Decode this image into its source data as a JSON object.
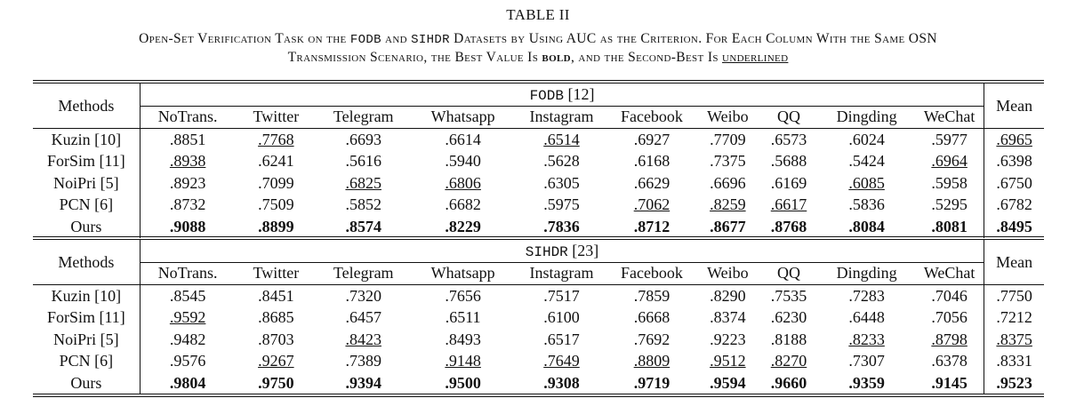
{
  "title": "TABLE II",
  "caption": {
    "line1_pre": "Open-Set Verification Task on the ",
    "ds1": "FODB",
    "and": " and ",
    "ds2": "SIHDR",
    "line1_post": " Datasets by Using AUC as the Criterion. For Each Column With the Same OSN",
    "line2_pre": "Transmission Scenario, the Best Value Is ",
    "bold_word": "bold",
    "line2_mid": ", and the Second-Best Is ",
    "underlined_word": "underlined"
  },
  "columns": [
    "NoTrans.",
    "Twitter",
    "Telegram",
    "Whatsapp",
    "Instagram",
    "Facebook",
    "Weibo",
    "QQ",
    "Dingding",
    "WeChat"
  ],
  "methods_label": "Methods",
  "mean_label": "Mean",
  "sections": [
    {
      "dataset": "FODB",
      "ref": " [12]",
      "rows": [
        {
          "method": "Kuzin [10]",
          "values": [
            ".8851",
            ".7768",
            ".6693",
            ".6614",
            ".6514",
            ".6927",
            ".7709",
            ".6573",
            ".6024",
            ".5977"
          ],
          "mean": ".6965",
          "underline": [
            1,
            4
          ],
          "mean_underline": true
        },
        {
          "method": "ForSim [11]",
          "values": [
            ".8938",
            ".6241",
            ".5616",
            ".5940",
            ".5628",
            ".6168",
            ".7375",
            ".5688",
            ".5424",
            ".6964"
          ],
          "mean": ".6398",
          "underline": [
            0,
            9
          ],
          "mean_underline": false
        },
        {
          "method": "NoiPri [5]",
          "values": [
            ".8923",
            ".7099",
            ".6825",
            ".6806",
            ".6305",
            ".6629",
            ".6696",
            ".6169",
            ".6085",
            ".5958"
          ],
          "mean": ".6750",
          "underline": [
            2,
            3,
            8
          ],
          "mean_underline": false
        },
        {
          "method": "PCN [6]",
          "values": [
            ".8732",
            ".7509",
            ".5852",
            ".6682",
            ".5975",
            ".7062",
            ".8259",
            ".6617",
            ".5836",
            ".5295"
          ],
          "mean": ".6782",
          "underline": [
            5,
            6,
            7
          ],
          "mean_underline": false
        },
        {
          "method": "Ours",
          "values": [
            ".9088",
            ".8899",
            ".8574",
            ".8229",
            ".7836",
            ".8712",
            ".8677",
            ".8768",
            ".8084",
            ".8081"
          ],
          "mean": ".8495",
          "bold": true
        }
      ]
    },
    {
      "dataset": "SIHDR",
      "ref": " [23]",
      "rows": [
        {
          "method": "Kuzin [10]",
          "values": [
            ".8545",
            ".8451",
            ".7320",
            ".7656",
            ".7517",
            ".7859",
            ".8290",
            ".7535",
            ".7283",
            ".7046"
          ],
          "mean": ".7750",
          "underline": [],
          "mean_underline": false
        },
        {
          "method": "ForSim [11]",
          "values": [
            ".9592",
            ".8685",
            ".6457",
            ".6511",
            ".6100",
            ".6668",
            ".8374",
            ".6230",
            ".6448",
            ".7056"
          ],
          "mean": ".7212",
          "underline": [
            0
          ],
          "mean_underline": false
        },
        {
          "method": "NoiPri [5]",
          "values": [
            ".9482",
            ".8703",
            ".8423",
            ".8493",
            ".6517",
            ".7692",
            ".9223",
            ".8188",
            ".8233",
            ".8798"
          ],
          "mean": ".8375",
          "underline": [
            2,
            8,
            9
          ],
          "mean_underline": true
        },
        {
          "method": "PCN [6]",
          "values": [
            ".9576",
            ".9267",
            ".7389",
            ".9148",
            ".7649",
            ".8809",
            ".9512",
            ".8270",
            ".7307",
            ".6378"
          ],
          "mean": ".8331",
          "underline": [
            1,
            3,
            4,
            5,
            6,
            7
          ],
          "mean_underline": false
        },
        {
          "method": "Ours",
          "values": [
            ".9804",
            ".9750",
            ".9394",
            ".9500",
            ".9308",
            ".9719",
            ".9594",
            ".9660",
            ".9359",
            ".9145"
          ],
          "mean": ".9523",
          "bold": true
        }
      ]
    }
  ]
}
